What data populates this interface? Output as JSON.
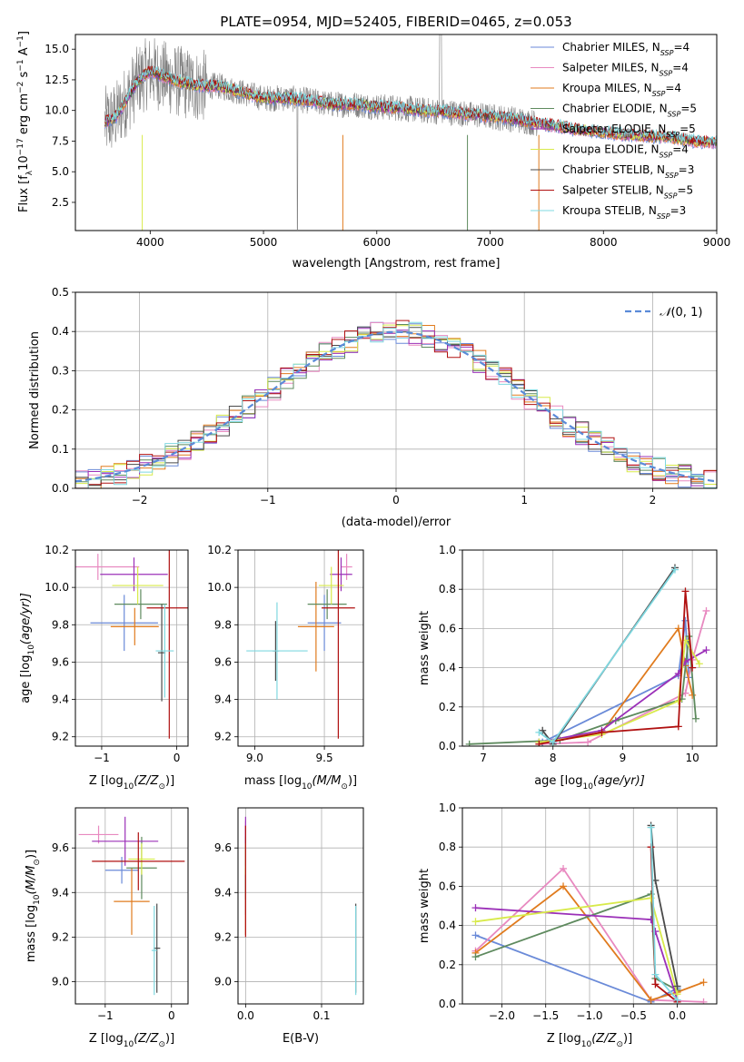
{
  "figure_title": "PLATE=0954, MJD=52405, FIBERID=0465, z=0.053",
  "series": [
    {
      "name": "Chabrier MILES",
      "nssp": "4",
      "color": "#6a8ad8"
    },
    {
      "name": "Salpeter MILES",
      "nssp": "4",
      "color": "#e889c0"
    },
    {
      "name": "Kroupa MILES",
      "nssp": "4",
      "color": "#e07b1e"
    },
    {
      "name": "Chabrier ELODIE",
      "nssp": "5",
      "color": "#5e8a5e"
    },
    {
      "name": "Salpeter ELODIE",
      "nssp": "5",
      "color": "#9b30b8"
    },
    {
      "name": "Kroupa ELODIE",
      "nssp": "4",
      "color": "#d8ea4a"
    },
    {
      "name": "Chabrier STELIB",
      "nssp": "3",
      "color": "#4a4a4a"
    },
    {
      "name": "Salpeter STELIB",
      "nssp": "5",
      "color": "#b01010"
    },
    {
      "name": "Kroupa STELIB",
      "nssp": "3",
      "color": "#7fd8e0"
    }
  ],
  "chart_data": [
    {
      "id": "spectrum",
      "type": "line",
      "xlabel": "wavelength [Angstrom, rest frame]",
      "ylabel_parts": [
        "Flux [f",
        "λ",
        "10",
        "−17",
        " erg cm",
        "−2",
        " s",
        "−1",
        " A",
        "−1",
        "]"
      ],
      "xlim": [
        3340,
        9000
      ],
      "ylim": [
        0.2,
        16.2
      ],
      "xticks": [
        4000,
        5000,
        6000,
        7000,
        8000,
        9000
      ],
      "yticks": [
        2.5,
        5.0,
        7.5,
        10.0,
        12.5,
        15.0
      ],
      "ytick_labels": [
        "2.5",
        "5.0",
        "7.5",
        "10.0",
        "12.5",
        "15.0"
      ],
      "data_color": "#808080",
      "model_x": [
        3600,
        3700,
        3800,
        3900,
        4000,
        4200,
        4400,
        4600,
        4800,
        5000,
        5200,
        5400,
        5600,
        5800,
        6000,
        6200,
        6400,
        6600,
        6800,
        7000,
        7200,
        7400,
        7600,
        7800,
        8000,
        8200,
        8400,
        8600,
        8800,
        9000
      ],
      "model_y": [
        9.0,
        9.5,
        11.0,
        12.5,
        13.2,
        12.5,
        12.0,
        12.0,
        11.5,
        11.0,
        11.0,
        10.8,
        10.5,
        10.5,
        10.3,
        10.2,
        10.0,
        9.9,
        9.7,
        9.5,
        9.3,
        9.0,
        8.7,
        8.4,
        8.2,
        8.0,
        7.9,
        7.8,
        7.5,
        7.4
      ],
      "grid": false,
      "legend": "top-right"
    },
    {
      "id": "residuals",
      "type": "histogram",
      "xlabel": "(data-model)/error",
      "ylabel": "Normed distribution",
      "xlim": [
        -2.5,
        2.5
      ],
      "ylim": [
        0,
        0.5
      ],
      "xticks": [
        -2,
        -1,
        0,
        1,
        2
      ],
      "xtick_labels": [
        "−2",
        "−1",
        "0",
        "1",
        "2"
      ],
      "yticks": [
        0.0,
        0.1,
        0.2,
        0.3,
        0.4,
        0.5
      ],
      "ytick_labels": [
        "0.0",
        "0.1",
        "0.2",
        "0.3",
        "0.4",
        "0.5"
      ],
      "bin_width": 0.1,
      "reference": {
        "label_parts": [
          "𝒩",
          "(0, 1)"
        ],
        "mean": 0,
        "sigma": 1,
        "color": "#5a8ad8"
      },
      "grid": true,
      "legend": "top-right"
    },
    {
      "id": "age-vs-Z",
      "type": "scatter",
      "xlabel_parts": [
        "Z [log",
        "10",
        "(Z/Z",
        "⊙",
        ")]"
      ],
      "ylabel_parts": [
        "age  [log",
        "10",
        "(age/yr)]"
      ],
      "xlim": [
        -1.35,
        0.15
      ],
      "ylim": [
        9.15,
        10.2
      ],
      "xticks": [
        -1,
        0
      ],
      "xtick_labels": [
        "−1",
        "0"
      ],
      "yticks": [
        9.2,
        9.4,
        9.6,
        9.8,
        10.0,
        10.2
      ],
      "ytick_labels": [
        "9.2",
        "9.4",
        "9.6",
        "9.8",
        "10.0",
        "10.2"
      ],
      "points": [
        {
          "x": -0.7,
          "y": 9.81,
          "xerr": 0.45,
          "yerr": 0.15
        },
        {
          "x": -1.05,
          "y": 10.11,
          "xerr": 0.55,
          "yerr": 0.07
        },
        {
          "x": -0.56,
          "y": 9.79,
          "xerr": 0.32,
          "yerr": 0.1
        },
        {
          "x": -0.48,
          "y": 9.91,
          "xerr": 0.35,
          "yerr": 0.08
        },
        {
          "x": -0.57,
          "y": 10.07,
          "xerr": 0.45,
          "yerr": 0.09
        },
        {
          "x": -0.52,
          "y": 10.01,
          "xerr": 0.34,
          "yerr": 0.1
        },
        {
          "x": -0.2,
          "y": 9.65,
          "xerr": 0.05,
          "yerr": 0.26
        },
        {
          "x": -0.1,
          "y": 9.89,
          "xerr": 0.3,
          "yerr": 0.7
        },
        {
          "x": -0.16,
          "y": 9.66,
          "xerr": 0.12,
          "yerr": 0.25
        }
      ]
    },
    {
      "id": "age-vs-mass",
      "type": "scatter",
      "xlabel_parts": [
        "mass [log",
        "10",
        "(M/M",
        "⊙",
        ")]"
      ],
      "ylabel_parts": [
        "",
        "",
        ""
      ],
      "xlim": [
        8.88,
        9.78
      ],
      "ylim": [
        9.15,
        10.2
      ],
      "xticks": [
        9.0,
        9.5
      ],
      "xtick_labels": [
        "9.0",
        "9.5"
      ],
      "yticks": [
        9.2,
        9.4,
        9.6,
        9.8,
        10.0,
        10.2
      ],
      "ytick_labels": [
        "9.2",
        "9.4",
        "9.6",
        "9.8",
        "10.0",
        "10.2"
      ],
      "points": [
        {
          "x": 9.5,
          "y": 9.81,
          "xerr": 0.12,
          "yerr": 0.15
        },
        {
          "x": 9.66,
          "y": 10.11,
          "xerr": 0.04,
          "yerr": 0.07
        },
        {
          "x": 9.44,
          "y": 9.79,
          "xerr": 0.13,
          "yerr": 0.24
        },
        {
          "x": 9.52,
          "y": 9.91,
          "xerr": 0.14,
          "yerr": 0.08
        },
        {
          "x": 9.62,
          "y": 10.07,
          "xerr": 0.08,
          "yerr": 0.09
        },
        {
          "x": 9.55,
          "y": 10.01,
          "xerr": 0.09,
          "yerr": 0.1
        },
        {
          "x": 9.15,
          "y": 9.66,
          "xerr": 0.02,
          "yerr": 0.16
        },
        {
          "x": 9.6,
          "y": 9.89,
          "xerr": 0.12,
          "yerr": 0.7
        },
        {
          "x": 9.16,
          "y": 9.66,
          "xerr": 0.22,
          "yerr": 0.26
        }
      ]
    },
    {
      "id": "weight-vs-age",
      "type": "line",
      "xlabel_parts": [
        "age  [log",
        "10",
        "(age/yr)]"
      ],
      "ylabel": "mass weight",
      "xlim": [
        6.7,
        10.35
      ],
      "ylim": [
        0,
        1.0
      ],
      "xticks": [
        7,
        8,
        9,
        10
      ],
      "xtick_labels": [
        "7",
        "8",
        "9",
        "10"
      ],
      "yticks": [
        0.0,
        0.2,
        0.4,
        0.6,
        0.8,
        1.0
      ],
      "ytick_labels": [
        "0.0",
        "0.2",
        "0.4",
        "0.6",
        "0.8",
        "1.0"
      ],
      "lines": [
        {
          "x": [
            7.85,
            9.8,
            9.9,
            9.95
          ],
          "y": [
            0.02,
            0.36,
            0.64,
            0.35
          ]
        },
        {
          "x": [
            7.8,
            8.5,
            9.9,
            10.0,
            10.2
          ],
          "y": [
            0.01,
            0.02,
            0.27,
            0.44,
            0.69
          ]
        },
        {
          "x": [
            7.8,
            8.7,
            9.8,
            9.9,
            10.0
          ],
          "y": [
            0.02,
            0.07,
            0.6,
            0.41,
            0.26
          ]
        },
        {
          "x": [
            6.8,
            8.1,
            8.9,
            9.85,
            9.95,
            10.05
          ],
          "y": [
            0.01,
            0.03,
            0.13,
            0.24,
            0.56,
            0.14
          ]
        },
        {
          "x": [
            7.8,
            8.7,
            9.8,
            9.9,
            10.2
          ],
          "y": [
            0.02,
            0.08,
            0.37,
            0.43,
            0.49
          ]
        },
        {
          "x": [
            7.8,
            8.7,
            9.8,
            9.9,
            10.1
          ],
          "y": [
            0.02,
            0.06,
            0.23,
            0.54,
            0.42
          ]
        },
        {
          "x": [
            7.85,
            8.0,
            9.75
          ],
          "y": [
            0.08,
            0.01,
            0.91
          ]
        },
        {
          "x": [
            7.8,
            8.7,
            9.8,
            9.9,
            10.0
          ],
          "y": [
            0.01,
            0.07,
            0.1,
            0.79,
            0.4
          ]
        },
        {
          "x": [
            7.8,
            8.0,
            9.75
          ],
          "y": [
            0.07,
            0.02,
            0.9
          ]
        }
      ]
    },
    {
      "id": "mass-vs-Z",
      "type": "scatter",
      "xlabel_parts": [
        "Z [log",
        "10",
        "(Z/Z",
        "⊙",
        ")]"
      ],
      "ylabel_parts": [
        "mass [log",
        "10",
        "(M/M",
        "⊙",
        ")]"
      ],
      "xlim": [
        -1.45,
        0.25
      ],
      "ylim": [
        8.9,
        9.78
      ],
      "xticks": [
        -1,
        0
      ],
      "xtick_labels": [
        "−1",
        "0"
      ],
      "yticks": [
        9.0,
        9.2,
        9.4,
        9.6
      ],
      "ytick_labels": [
        "9.0",
        "9.2",
        "9.4",
        "9.6"
      ],
      "points": [
        {
          "x": -0.75,
          "y": 9.5,
          "xerr": 0.25,
          "yerr": 0.06
        },
        {
          "x": -1.1,
          "y": 9.66,
          "xerr": 0.3,
          "yerr": 0.04
        },
        {
          "x": -0.6,
          "y": 9.36,
          "xerr": 0.27,
          "yerr": 0.15
        },
        {
          "x": -0.45,
          "y": 9.51,
          "xerr": 0.23,
          "yerr": 0.14
        },
        {
          "x": -0.7,
          "y": 9.63,
          "xerr": 0.5,
          "yerr": 0.11
        },
        {
          "x": -0.45,
          "y": 9.55,
          "xerr": 0.2,
          "yerr": 0.07
        },
        {
          "x": -0.22,
          "y": 9.15,
          "xerr": 0.05,
          "yerr": 0.2
        },
        {
          "x": -0.5,
          "y": 9.54,
          "xerr": 0.7,
          "yerr": 0.13
        },
        {
          "x": -0.26,
          "y": 9.14,
          "xerr": 0.04,
          "yerr": 0.2
        }
      ]
    },
    {
      "id": "mass-vs-EBV",
      "type": "scatter",
      "xlabel": "E(B-V)",
      "xlim": [
        -0.01,
        0.155
      ],
      "ylim": [
        8.9,
        9.78
      ],
      "xticks": [
        0.0,
        0.1
      ],
      "xtick_labels": [
        "0.0",
        "0.1"
      ],
      "yticks": [
        9.0,
        9.2,
        9.4,
        9.6
      ],
      "ytick_labels": [
        "9.0",
        "9.2",
        "9.4",
        "9.6"
      ],
      "points": [
        {
          "x": 0.0,
          "y": 9.5,
          "yerr": 0.2
        },
        {
          "x": 0.0,
          "y": 9.66,
          "yerr": 0.06
        },
        {
          "x": 0.0,
          "y": 9.36,
          "yerr": 0.15
        },
        {
          "x": 0.0,
          "y": 9.51,
          "yerr": 0.14
        },
        {
          "x": 0.0,
          "y": 9.63,
          "yerr": 0.11
        },
        {
          "x": 0.0,
          "y": 9.55,
          "yerr": 0.07
        },
        {
          "x": 0.145,
          "y": 9.15,
          "yerr": 0.2
        },
        {
          "x": 0.0,
          "y": 9.45,
          "yerr": 0.25
        },
        {
          "x": 0.145,
          "y": 9.14,
          "yerr": 0.2
        }
      ]
    },
    {
      "id": "weight-vs-Z",
      "type": "line",
      "xlabel_parts": [
        "Z [log",
        "10",
        "(Z/Z",
        "⊙",
        ")]"
      ],
      "ylabel": "mass weight",
      "xlim": [
        -2.45,
        0.45
      ],
      "ylim": [
        0,
        1.0
      ],
      "xticks": [
        -2.0,
        -1.5,
        -1.0,
        -0.5,
        0.0
      ],
      "xtick_labels": [
        "−2.0",
        "−1.5",
        "−1.0",
        "−0.5",
        "0.0"
      ],
      "yticks": [
        0.0,
        0.2,
        0.4,
        0.6,
        0.8,
        1.0
      ],
      "ytick_labels": [
        "0.0",
        "0.2",
        "0.4",
        "0.6",
        "0.8",
        "1.0"
      ],
      "lines": [
        {
          "x": [
            -2.3,
            -0.3,
            0.0
          ],
          "y": [
            0.35,
            0.01,
            0.08
          ]
        },
        {
          "x": [
            -2.3,
            -1.3,
            -0.3,
            0.3
          ],
          "y": [
            0.27,
            0.69,
            0.02,
            0.01
          ]
        },
        {
          "x": [
            -2.3,
            -1.3,
            -0.3,
            0.0,
            0.3
          ],
          "y": [
            0.26,
            0.6,
            0.02,
            0.06,
            0.11
          ]
        },
        {
          "x": [
            -2.3,
            -0.3,
            -0.25,
            0.0
          ],
          "y": [
            0.24,
            0.56,
            0.13,
            0.07
          ]
        },
        {
          "x": [
            -2.3,
            -0.3,
            -0.25,
            0.0
          ],
          "y": [
            0.49,
            0.43,
            0.37,
            0.02
          ]
        },
        {
          "x": [
            -2.3,
            -0.3,
            0.0
          ],
          "y": [
            0.42,
            0.54,
            0.05
          ]
        },
        {
          "x": [
            -0.3,
            -0.25,
            0.0
          ],
          "y": [
            0.91,
            0.63,
            0.09
          ]
        },
        {
          "x": [
            -0.3,
            -0.25,
            0.0
          ],
          "y": [
            0.8,
            0.1,
            0.01
          ]
        },
        {
          "x": [
            -0.3,
            -0.25,
            0.0
          ],
          "y": [
            0.9,
            0.15,
            0.02
          ]
        }
      ]
    }
  ]
}
